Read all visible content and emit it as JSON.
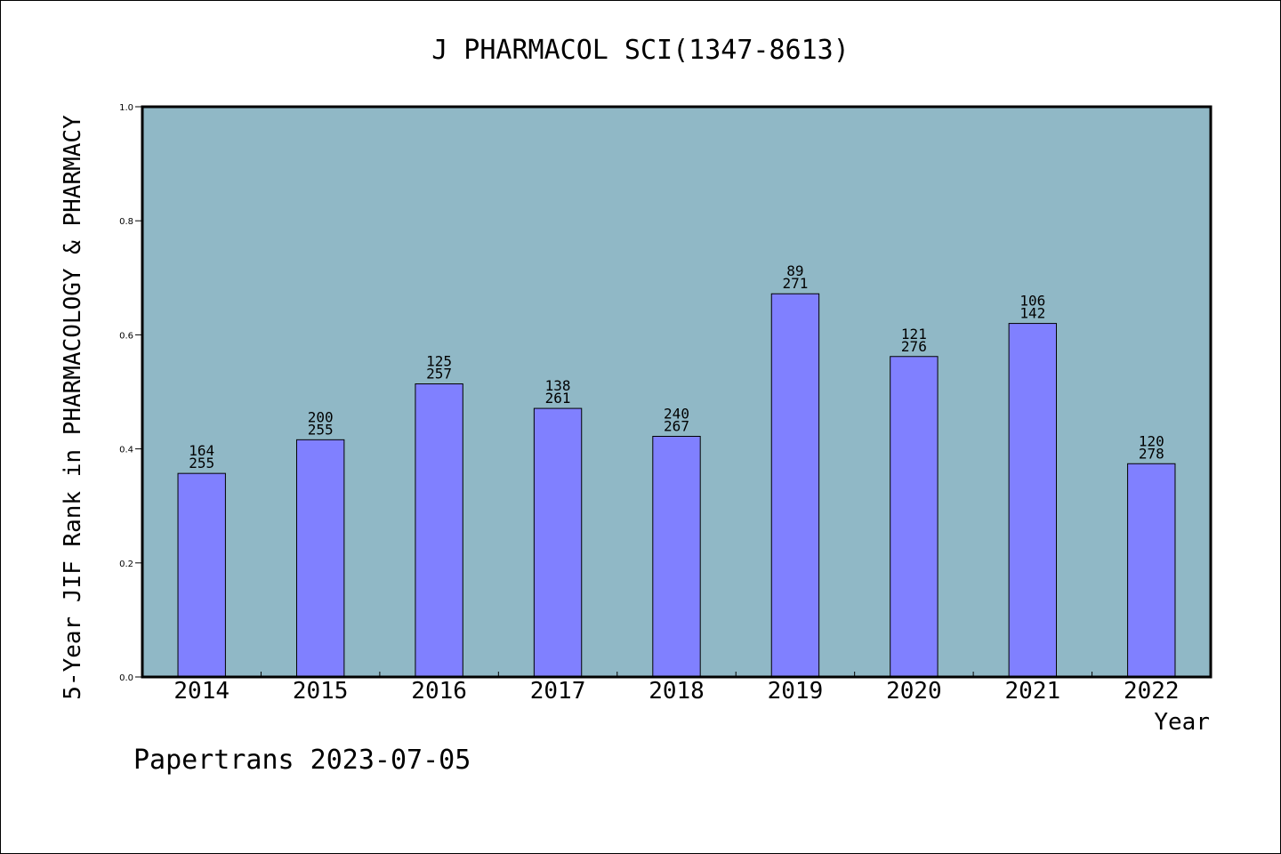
{
  "chart_data": {
    "type": "bar",
    "title": "J PHARMACOL SCI(1347-8613)",
    "xlabel": "Year",
    "ylabel": "5-Year JIF Rank in PHARMACOLOGY & PHARMACY",
    "categories": [
      "2014",
      "2015",
      "2016",
      "2017",
      "2018",
      "2019",
      "2020",
      "2021",
      "2022"
    ],
    "values": [
      0.357,
      0.416,
      0.514,
      0.471,
      0.422,
      0.672,
      0.562,
      0.62,
      0.374
    ],
    "rank_labels": [
      "164",
      "200",
      "125",
      "138",
      "240",
      "89",
      "121",
      "106",
      "120"
    ],
    "total_labels": [
      "255",
      "255",
      "257",
      "261",
      "267",
      "271",
      "276",
      "142",
      "278"
    ],
    "ylim": [
      0,
      1
    ],
    "yticks": [
      "0.0",
      "0.2",
      "0.4",
      "0.6",
      "0.8",
      "1.0"
    ],
    "grid": false,
    "colors": {
      "bar": "#8080ff",
      "plot_bg": "#90b8c6",
      "axis": "#000000"
    }
  },
  "footer": {
    "text": "Papertrans 2023-07-05"
  }
}
